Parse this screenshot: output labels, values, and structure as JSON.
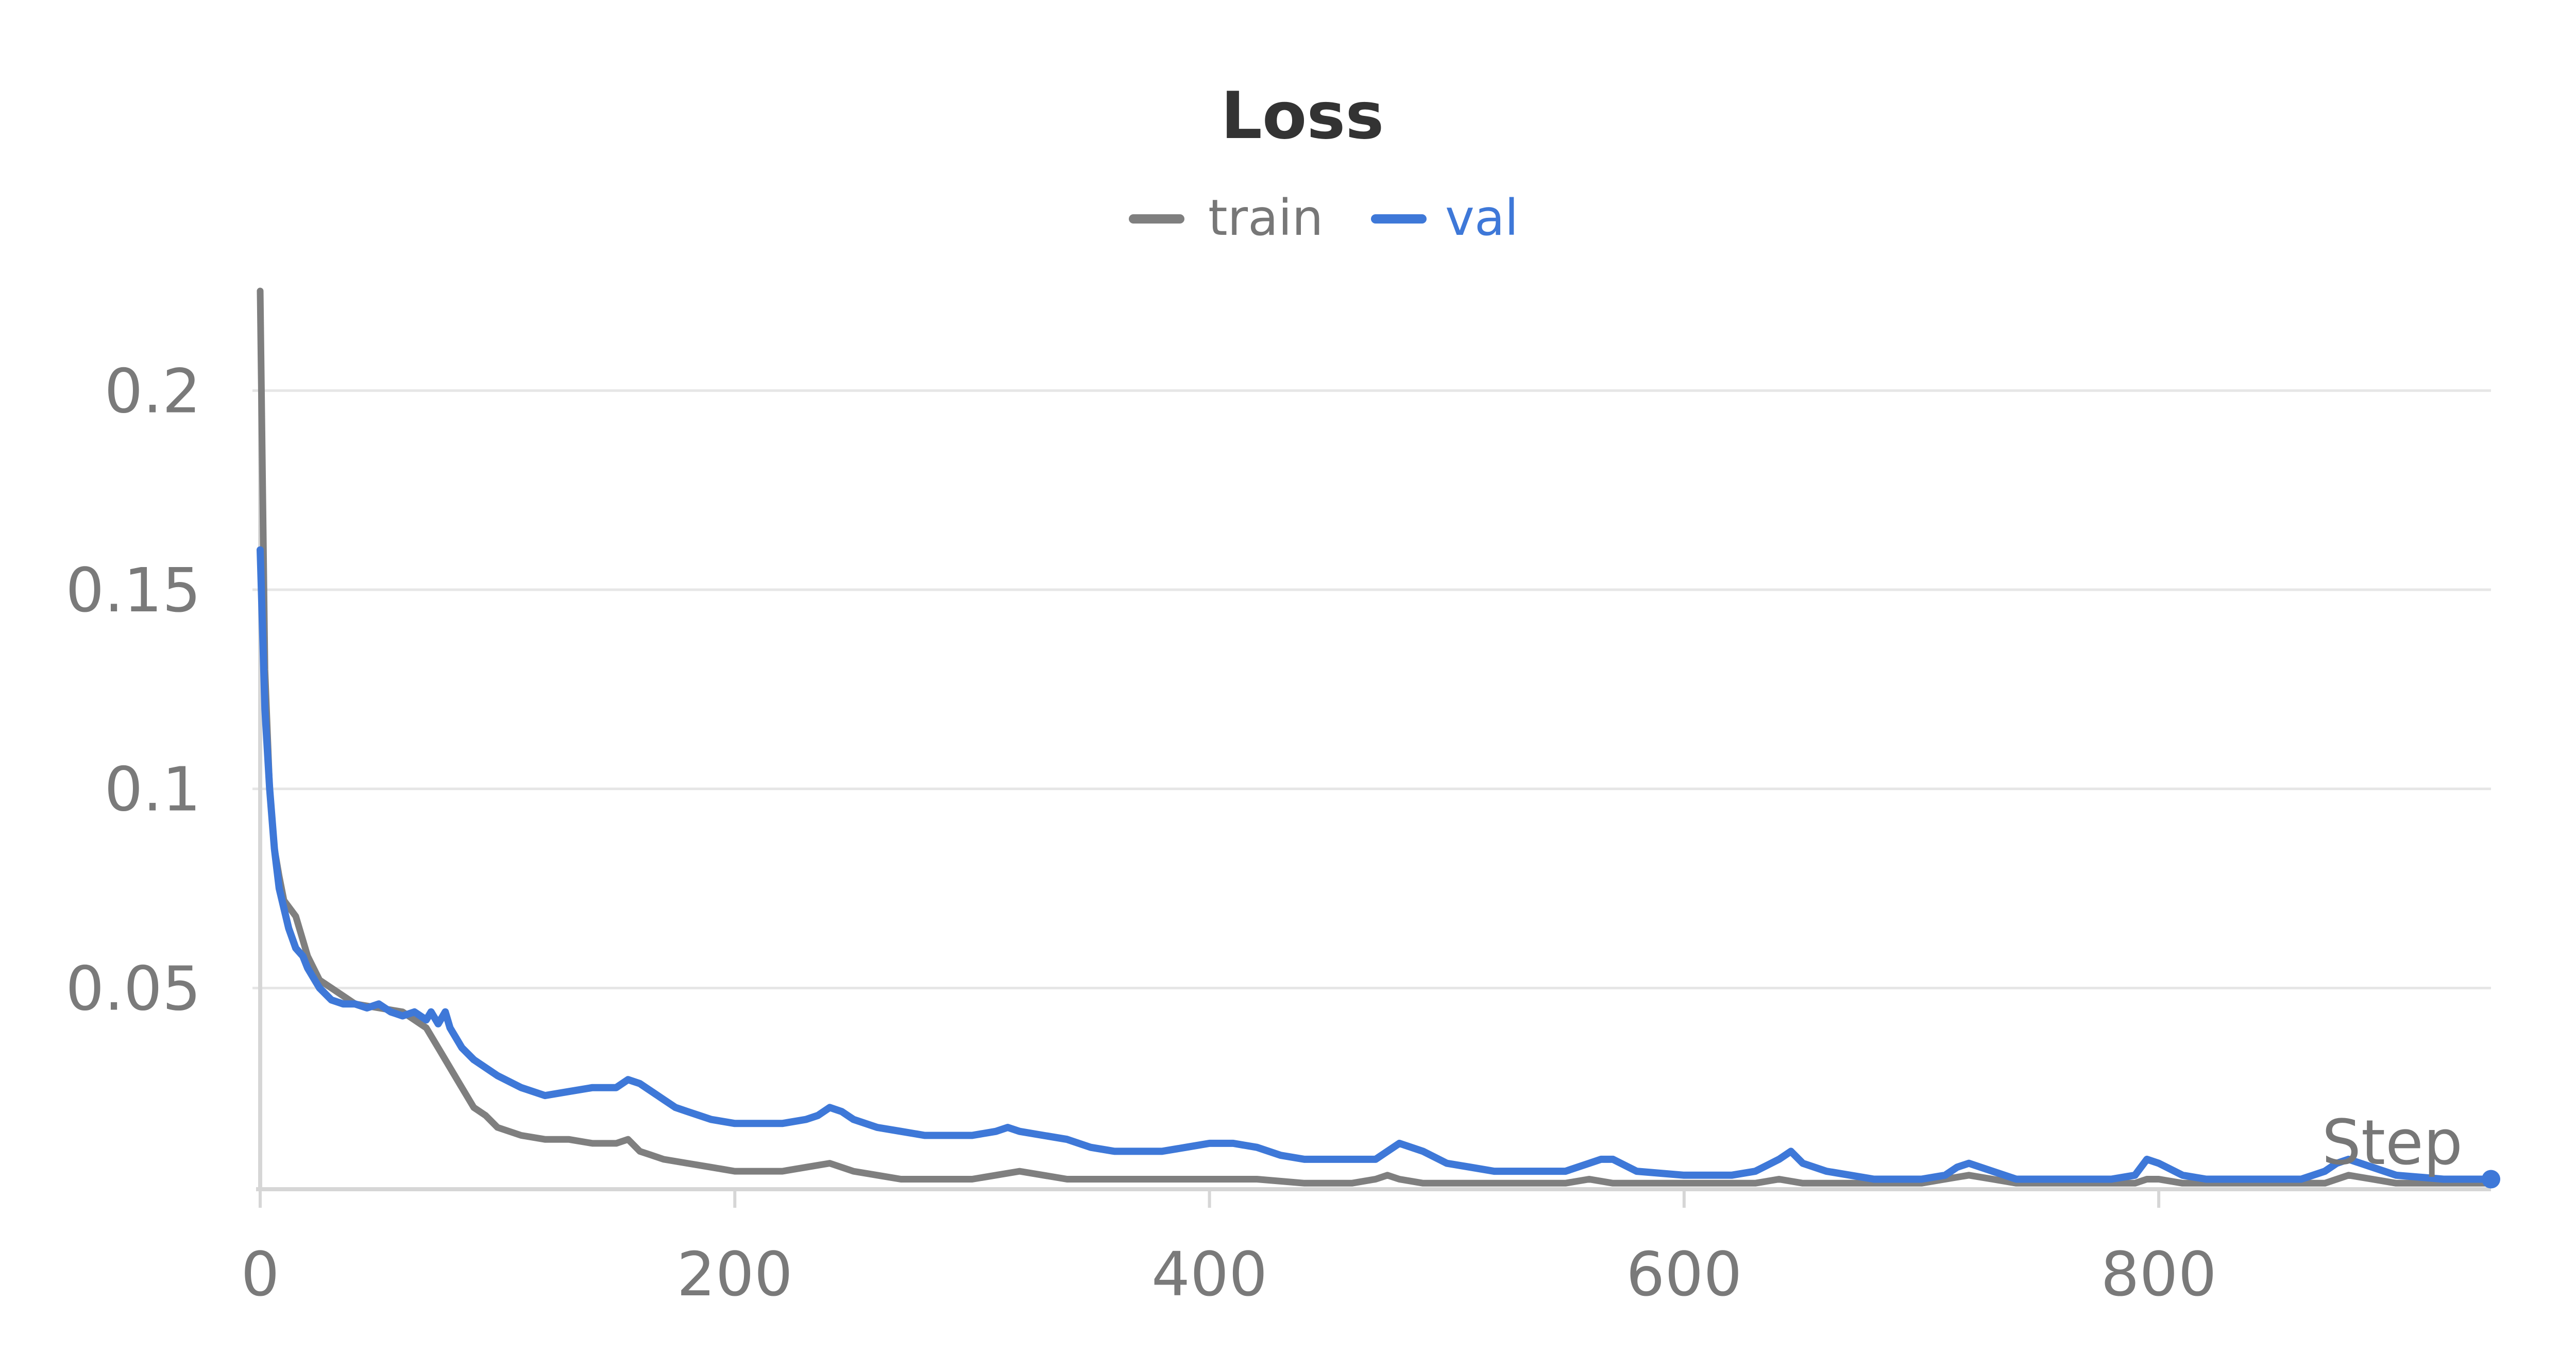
{
  "chart_data": {
    "type": "line",
    "title": "Loss",
    "xlabel": "Step",
    "ylabel": "",
    "xlim": [
      0,
      940
    ],
    "ylim": [
      0,
      0.225
    ],
    "grid": true,
    "legend_placement": "top-center",
    "x_ticks": [
      0,
      200,
      400,
      600,
      800
    ],
    "x_tick_labels": [
      "0",
      "200",
      "400",
      "600",
      "800"
    ],
    "y_ticks": [
      0.05,
      0.1,
      0.15,
      0.2
    ],
    "y_tick_labels": [
      "0.05",
      "0.1",
      "0.15",
      "0.2"
    ],
    "series": [
      {
        "name": "train",
        "color": "#7f7f7f",
        "x": [
          0,
          2,
          4,
          6,
          8,
          10,
          15,
          20,
          25,
          30,
          40,
          50,
          60,
          65,
          70,
          75,
          80,
          85,
          90,
          95,
          100,
          110,
          120,
          130,
          140,
          150,
          155,
          160,
          165,
          170,
          180,
          190,
          200,
          210,
          220,
          230,
          240,
          250,
          260,
          270,
          280,
          290,
          300,
          310,
          320,
          330,
          340,
          360,
          380,
          400,
          420,
          440,
          460,
          470,
          475,
          480,
          490,
          500,
          520,
          540,
          550,
          560,
          570,
          580,
          600,
          620,
          630,
          640,
          650,
          660,
          680,
          700,
          710,
          720,
          730,
          740,
          760,
          780,
          790,
          795,
          800,
          810,
          820,
          840,
          860,
          870,
          880,
          890,
          900,
          920,
          940
        ],
        "values": [
          0.225,
          0.13,
          0.1,
          0.085,
          0.078,
          0.072,
          0.068,
          0.058,
          0.052,
          0.05,
          0.046,
          0.045,
          0.044,
          0.042,
          0.04,
          0.035,
          0.03,
          0.025,
          0.02,
          0.018,
          0.015,
          0.013,
          0.012,
          0.012,
          0.011,
          0.011,
          0.012,
          0.009,
          0.008,
          0.007,
          0.006,
          0.005,
          0.004,
          0.004,
          0.004,
          0.005,
          0.006,
          0.004,
          0.003,
          0.002,
          0.002,
          0.002,
          0.002,
          0.003,
          0.004,
          0.003,
          0.002,
          0.002,
          0.002,
          0.002,
          0.002,
          0.001,
          0.001,
          0.002,
          0.003,
          0.002,
          0.001,
          0.001,
          0.001,
          0.001,
          0.001,
          0.002,
          0.001,
          0.001,
          0.001,
          0.001,
          0.001,
          0.002,
          0.001,
          0.001,
          0.001,
          0.001,
          0.002,
          0.003,
          0.002,
          0.001,
          0.001,
          0.001,
          0.001,
          0.002,
          0.002,
          0.001,
          0.001,
          0.001,
          0.001,
          0.001,
          0.003,
          0.002,
          0.001,
          0.001,
          0.001
        ]
      },
      {
        "name": "val",
        "color": "#3e78d8",
        "x": [
          0,
          2,
          4,
          6,
          8,
          10,
          12,
          15,
          18,
          20,
          25,
          30,
          35,
          40,
          45,
          50,
          55,
          60,
          65,
          70,
          72,
          75,
          78,
          80,
          85,
          90,
          95,
          100,
          110,
          120,
          130,
          140,
          150,
          155,
          160,
          165,
          170,
          175,
          180,
          185,
          190,
          200,
          210,
          220,
          230,
          235,
          240,
          245,
          250,
          260,
          270,
          280,
          290,
          300,
          310,
          315,
          320,
          330,
          340,
          350,
          360,
          380,
          390,
          400,
          410,
          420,
          430,
          440,
          460,
          470,
          475,
          480,
          490,
          500,
          510,
          520,
          540,
          550,
          560,
          565,
          570,
          580,
          600,
          620,
          630,
          640,
          645,
          650,
          660,
          680,
          700,
          710,
          715,
          720,
          730,
          740,
          760,
          780,
          790,
          795,
          800,
          810,
          820,
          840,
          860,
          870,
          875,
          880,
          890,
          900,
          920,
          940
        ],
        "values": [
          0.16,
          0.12,
          0.1,
          0.085,
          0.075,
          0.07,
          0.065,
          0.06,
          0.058,
          0.055,
          0.05,
          0.047,
          0.046,
          0.046,
          0.045,
          0.046,
          0.044,
          0.043,
          0.044,
          0.042,
          0.044,
          0.041,
          0.044,
          0.04,
          0.035,
          0.032,
          0.03,
          0.028,
          0.025,
          0.023,
          0.024,
          0.025,
          0.025,
          0.027,
          0.026,
          0.024,
          0.022,
          0.02,
          0.019,
          0.018,
          0.017,
          0.016,
          0.016,
          0.016,
          0.017,
          0.018,
          0.02,
          0.019,
          0.017,
          0.015,
          0.014,
          0.013,
          0.013,
          0.013,
          0.014,
          0.015,
          0.014,
          0.013,
          0.012,
          0.01,
          0.009,
          0.009,
          0.01,
          0.011,
          0.011,
          0.01,
          0.008,
          0.007,
          0.007,
          0.007,
          0.009,
          0.011,
          0.009,
          0.006,
          0.005,
          0.004,
          0.004,
          0.004,
          0.006,
          0.007,
          0.007,
          0.004,
          0.003,
          0.003,
          0.004,
          0.007,
          0.009,
          0.006,
          0.004,
          0.002,
          0.002,
          0.003,
          0.005,
          0.006,
          0.004,
          0.002,
          0.002,
          0.002,
          0.003,
          0.007,
          0.006,
          0.003,
          0.002,
          0.002,
          0.002,
          0.004,
          0.006,
          0.007,
          0.005,
          0.003,
          0.002,
          0.002
        ]
      }
    ]
  }
}
